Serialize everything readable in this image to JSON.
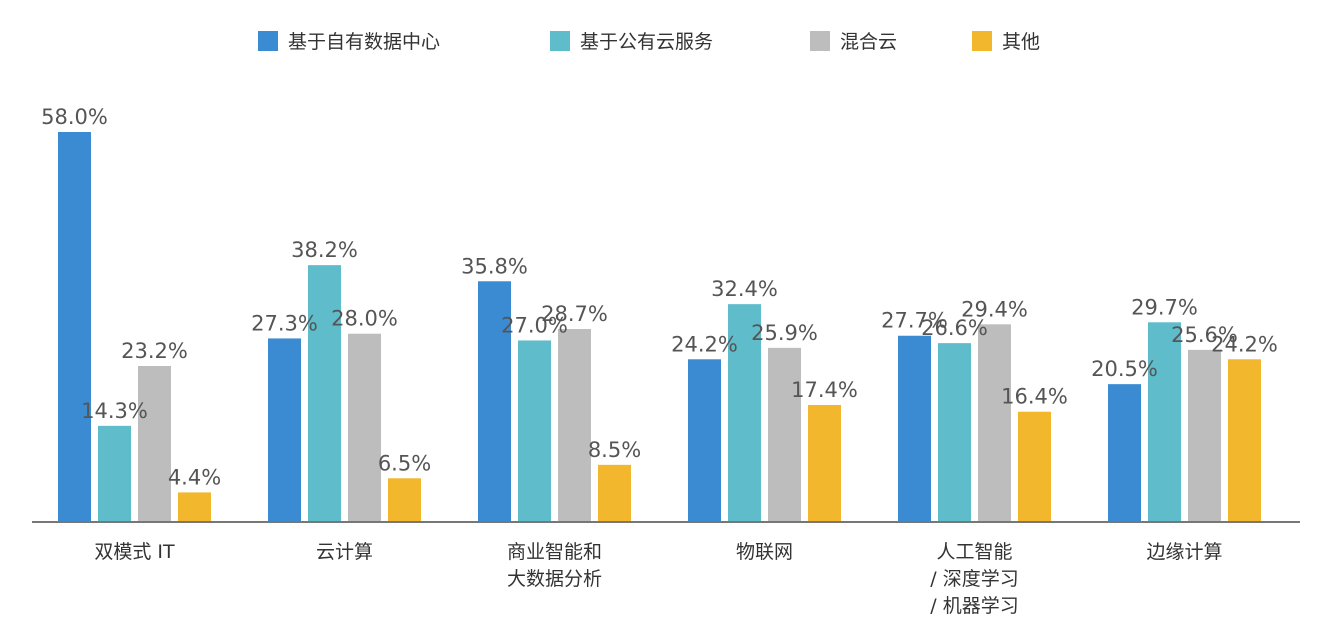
{
  "chart_data": {
    "type": "bar",
    "categories": [
      [
        "双模式 IT"
      ],
      [
        "云计算"
      ],
      [
        "商业智能和",
        "大数据分析"
      ],
      [
        "物联网"
      ],
      [
        "人工智能",
        "/ 深度学习",
        "/ 机器学习"
      ],
      [
        "边缘计算"
      ]
    ],
    "series": [
      {
        "name": "基于自有数据中心",
        "color": "#3b8bd3",
        "values": [
          58.0,
          27.3,
          35.8,
          24.2,
          27.7,
          20.5
        ],
        "labels": [
          "58.0%",
          "27.3%",
          "35.8%",
          "24.2%",
          "27.7%",
          "20.5%"
        ]
      },
      {
        "name": "基于公有云服务",
        "color": "#5fbccb",
        "values": [
          14.3,
          38.2,
          27.0,
          32.4,
          26.6,
          29.7
        ],
        "labels": [
          "14.3%",
          "38.2%",
          "27.0%",
          "32.4%",
          "26.6%",
          "29.7%"
        ]
      },
      {
        "name": "混合云",
        "color": "#bdbdbd",
        "values": [
          23.2,
          28.0,
          28.7,
          25.9,
          29.4,
          25.6
        ],
        "labels": [
          "23.2%",
          "28.0%",
          "28.7%",
          "25.9%",
          "29.4%",
          "25.6%"
        ]
      },
      {
        "name": "其他",
        "color": "#f2b72d",
        "values": [
          4.4,
          6.5,
          8.5,
          17.4,
          16.4,
          24.2
        ],
        "labels": [
          "4.4%",
          "6.5%",
          "8.5%",
          "17.4%",
          "16.4%",
          "24.2%"
        ]
      }
    ],
    "ylim": [
      0,
      58.0
    ],
    "legend_position": "top",
    "grid": false,
    "xlabel": "",
    "ylabel": ""
  }
}
